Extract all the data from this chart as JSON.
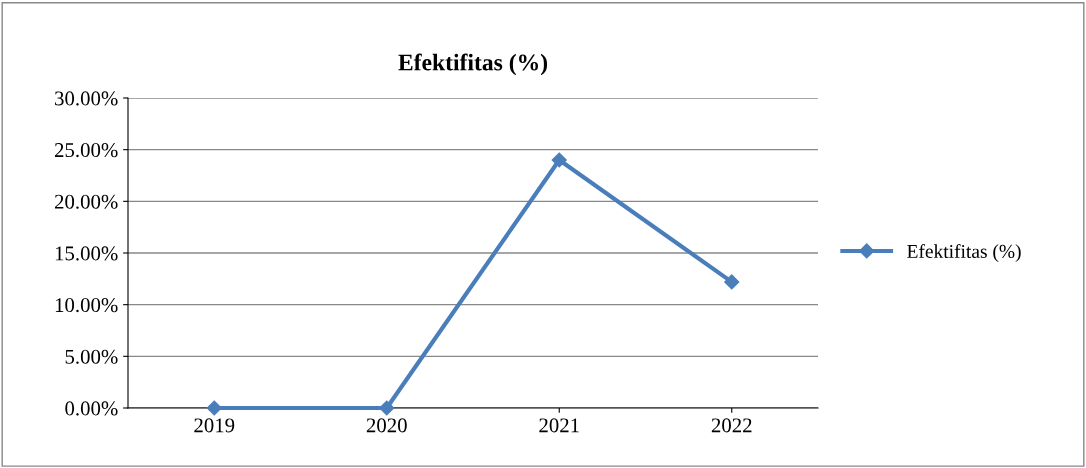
{
  "chart_data": {
    "type": "line",
    "title": "Efektifitas (%)",
    "categories": [
      "2019",
      "2020",
      "2021",
      "2022"
    ],
    "series": [
      {
        "name": "Efektifitas (%)",
        "color": "#4a7ebb",
        "values": [
          0,
          0,
          24,
          12.2
        ]
      }
    ],
    "ylim": [
      0,
      30
    ],
    "yticks": [
      {
        "value": 0,
        "label": "0.00%"
      },
      {
        "value": 5,
        "label": "5.00%"
      },
      {
        "value": 10,
        "label": "10.00%"
      },
      {
        "value": 15,
        "label": "15.00%"
      },
      {
        "value": 20,
        "label": "20.00%"
      },
      {
        "value": 25,
        "label": "25.00%"
      },
      {
        "value": 30,
        "label": "30.00%"
      }
    ],
    "grid": "y",
    "legend": "right",
    "marker": "diamond",
    "line_style": "solid"
  }
}
